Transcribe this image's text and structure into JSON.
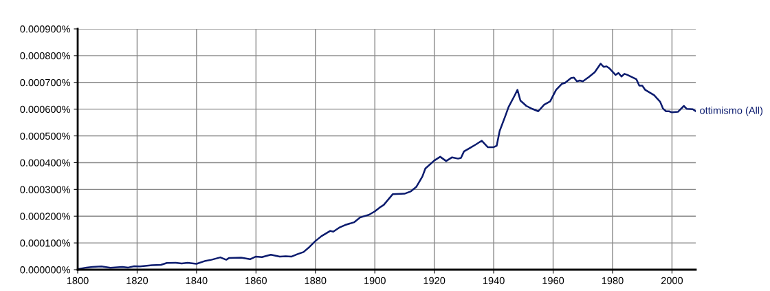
{
  "chart_data": {
    "type": "line",
    "x": [
      1800,
      1803,
      1805,
      1808,
      1811,
      1815,
      1817,
      1819,
      1821,
      1825,
      1828,
      1830,
      1833,
      1835,
      1837,
      1840,
      1843,
      1845,
      1848,
      1850,
      1851,
      1855,
      1858,
      1860,
      1862,
      1865,
      1868,
      1870,
      1872,
      1874,
      1876,
      1878,
      1880,
      1882,
      1885,
      1886,
      1888,
      1890,
      1893,
      1895,
      1898,
      1900,
      1902,
      1903,
      1906,
      1910,
      1912,
      1914,
      1916,
      1917,
      1920,
      1922,
      1924,
      1926,
      1928,
      1929,
      1930,
      1932,
      1934,
      1936,
      1938,
      1940,
      1941,
      1942,
      1944,
      1945,
      1947,
      1948,
      1949,
      1951,
      1953,
      1955,
      1957,
      1959,
      1961,
      1963,
      1964,
      1966,
      1967,
      1968,
      1969,
      1970,
      1972,
      1974,
      1976,
      1977,
      1978,
      1979,
      1981,
      1982,
      1983,
      1984,
      1985,
      1988,
      1989,
      1990,
      1991,
      1994,
      1996,
      1997,
      1998,
      1999,
      2000,
      2002,
      2004,
      2005,
      2007,
      2008
    ],
    "series": [
      {
        "name": "ottimismo (All)",
        "color": "#0b1b6e",
        "values": [
          2e-06,
          8e-06,
          1e-05,
          1.2e-05,
          7e-06,
          1e-05,
          8e-06,
          1.3e-05,
          1.2e-05,
          1.7e-05,
          1.8e-05,
          2.5e-05,
          2.6e-05,
          2.3e-05,
          2.6e-05,
          2.2e-05,
          3.3e-05,
          3.7e-05,
          4.6e-05,
          3.7e-05,
          4.4e-05,
          4.5e-05,
          3.9e-05,
          4.9e-05,
          4.7e-05,
          5.6e-05,
          4.9e-05,
          5e-05,
          4.9e-05,
          5.8e-05,
          6.6e-05,
          8.5e-05,
          0.000107,
          0.000125,
          0.000145,
          0.000142,
          0.000157,
          0.000167,
          0.000177,
          0.000195,
          0.000205,
          0.000218,
          0.000235,
          0.000242,
          0.000282,
          0.000284,
          0.000292,
          0.00031,
          0.000348,
          0.000378,
          0.000408,
          0.000422,
          0.000406,
          0.00042,
          0.000415,
          0.000418,
          0.000442,
          0.000455,
          0.000468,
          0.000482,
          0.000458,
          0.000458,
          0.000463,
          0.000518,
          0.000577,
          0.000608,
          0.00065,
          0.000672,
          0.000632,
          0.000612,
          0.000601,
          0.000592,
          0.000617,
          0.000629,
          0.000672,
          0.000695,
          0.000698,
          0.000716,
          0.000718,
          0.000704,
          0.000707,
          0.000704,
          0.00072,
          0.000738,
          0.00077,
          0.000758,
          0.00076,
          0.000752,
          0.000728,
          0.000735,
          0.000722,
          0.000732,
          0.000728,
          0.000712,
          0.000688,
          0.000688,
          0.000672,
          0.000652,
          0.000628,
          0.000602,
          0.000592,
          0.000592,
          0.000588,
          0.00059,
          0.000612,
          0.000601,
          0.0006,
          0.000592
        ]
      }
    ],
    "xlim": [
      1800,
      2008
    ],
    "ylim": [
      0,
      0.0009
    ],
    "xticks": [
      1800,
      1820,
      1840,
      1860,
      1880,
      1900,
      1920,
      1940,
      1960,
      1980,
      2000
    ],
    "yticks": [
      {
        "value": 0,
        "label": "0.000000%"
      },
      {
        "value": 0.0001,
        "label": "0.000100%"
      },
      {
        "value": 0.0002,
        "label": "0.000200%"
      },
      {
        "value": 0.0003,
        "label": "0.000300%"
      },
      {
        "value": 0.0004,
        "label": "0.000400%"
      },
      {
        "value": 0.0005,
        "label": "0.000500%"
      },
      {
        "value": 0.0006,
        "label": "0.000600%"
      },
      {
        "value": 0.0007,
        "label": "0.000700%"
      },
      {
        "value": 0.0008,
        "label": "0.000800%"
      },
      {
        "value": 0.0009,
        "label": "0.000900%"
      }
    ],
    "grid": true
  }
}
